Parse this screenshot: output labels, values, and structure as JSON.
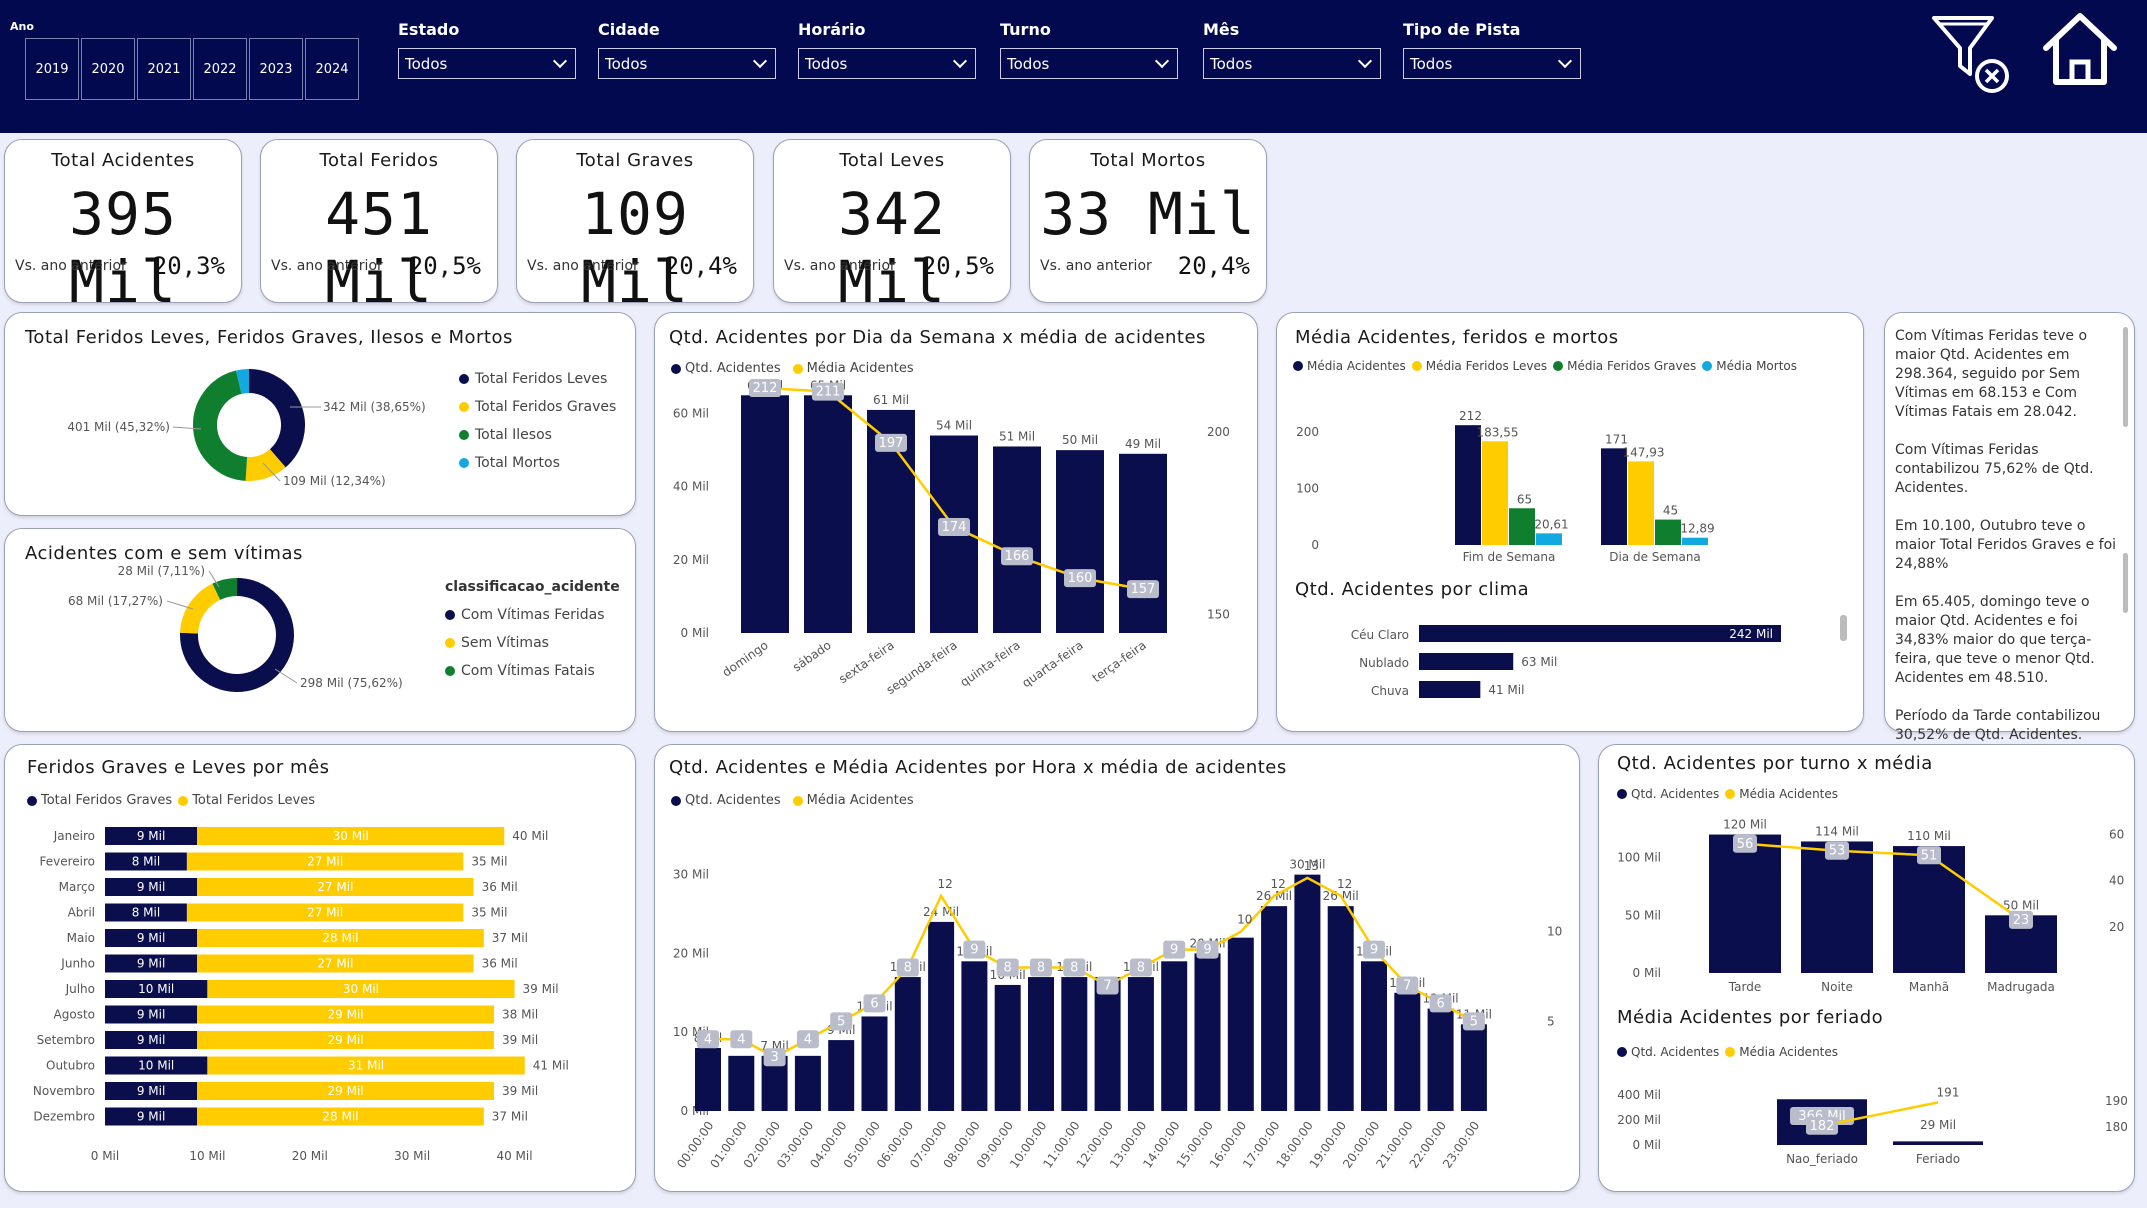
{
  "header": {
    "ano_label": "Ano",
    "years": [
      "2019",
      "2020",
      "2021",
      "2022",
      "2023",
      "2024"
    ],
    "filters": [
      {
        "label": "Estado",
        "value": "Todos"
      },
      {
        "label": "Cidade",
        "value": "Todos"
      },
      {
        "label": "Horário",
        "value": "Todos"
      },
      {
        "label": "Turno",
        "value": "Todos"
      },
      {
        "label": "Mês",
        "value": "Todos"
      },
      {
        "label": "Tipo de Pista",
        "value": "Todos"
      }
    ],
    "icons": [
      "clear-filter-icon",
      "home-icon"
    ]
  },
  "colors": {
    "navy": "#02094f",
    "dark_bar": "#0a0e4d",
    "yellow": "#ffcc00",
    "green": "#0f7f2f",
    "blue": "#11a9e0"
  },
  "kpis": [
    {
      "title": "Total Acidentes",
      "value": "395 Mil",
      "sub": "Vs. ano anterior",
      "pct": "20,3%"
    },
    {
      "title": "Total Feridos",
      "value": "451 Mil",
      "sub": "Vs. ano anterior",
      "pct": "20,5%"
    },
    {
      "title": "Total Graves",
      "value": "109 Mil",
      "sub": "Vs. ano anterior",
      "pct": "20,4%"
    },
    {
      "title": "Total Leves",
      "value": "342 Mil",
      "sub": "Vs. ano anterior",
      "pct": "20,5%"
    },
    {
      "title": "Total Mortos",
      "value": "33 Mil",
      "sub": "Vs. ano anterior",
      "pct": "20,4%"
    }
  ],
  "insights": [
    "Com Vítimas Feridas teve o maior Qtd. Acidentes em 298.364, seguido por Sem Vítimas em 68.153 e Com Vítimas Fatais em 28.042.",
    "Com Vítimas Feridas contabilizou 75,62% de Qtd. Acidentes.",
    "Em 10.100, Outubro teve o maior Total Feridos Graves e foi 24,88%",
    "Em 65.405, domingo teve o maior Qtd. Acidentes e foi 34,83% maior do que terça-feira, que teve o menor Qtd. Acidentes em 48.510.",
    "Período da Tarde contabilizou 30,52% de Qtd. Acidentes."
  ],
  "chart_data": [
    {
      "id": "feridos-donut",
      "type": "pie",
      "title": "Total Feridos Leves, Feridos Graves, Ilesos e Mortos",
      "legend": [
        "Total Feridos Leves",
        "Total Feridos Graves",
        "Total Ilesos",
        "Total Mortos"
      ],
      "values": [
        342,
        109,
        401,
        33
      ],
      "colors": [
        "#0a0e4d",
        "#ffcc00",
        "#0f7f2f",
        "#11a9e0"
      ],
      "labels": [
        "342 Mil (38,65%)",
        "109 Mil (12,34%)",
        "401 Mil (45,32%)",
        ""
      ]
    },
    {
      "id": "vitimas-donut",
      "type": "pie",
      "title": "Acidentes com e sem vítimas",
      "legend_title": "classificacao_acidente",
      "legend": [
        "Com Vítimas Feridas",
        "Sem Vítimas",
        "Com Vítimas Fatais"
      ],
      "values": [
        298,
        68,
        28
      ],
      "colors": [
        "#0a0e4d",
        "#ffcc00",
        "#0f7f2f"
      ],
      "labels": [
        "298 Mil (75,62%)",
        "68 Mil (17,27%)",
        "28 Mil (7,11%)"
      ]
    },
    {
      "id": "dia-semana",
      "type": "bar",
      "title": "Qtd. Acidentes por Dia da Semana x média de acidentes",
      "legend": [
        "Qtd. Acidentes",
        "Média Acidentes"
      ],
      "categories": [
        "domingo",
        "sábado",
        "sexta-feira",
        "segunda-feira",
        "quinta-feira",
        "quarta-feira",
        "terça-feira"
      ],
      "values": [
        65,
        65,
        61,
        54,
        51,
        50,
        49
      ],
      "value_labels": [
        "65 Mil",
        "65 Mil",
        "61 Mil",
        "54 Mil",
        "51 Mil",
        "50 Mil",
        "49 Mil"
      ],
      "line_values": [
        212,
        211,
        197,
        174,
        166,
        160,
        157
      ],
      "ylim": [
        0,
        70
      ],
      "y_ticks": [
        "0 Mil",
        "20 Mil",
        "40 Mil",
        "60 Mil"
      ],
      "y2lim": [
        145,
        215
      ],
      "y2_ticks": [
        "150",
        "200"
      ]
    },
    {
      "id": "media-afm",
      "type": "bar",
      "title": "Média Acidentes, feridos e mortos",
      "legend": [
        "Média Acidentes",
        "Média Feridos Leves",
        "Média Feridos Graves",
        "Média Mortos"
      ],
      "categories": [
        "Fim de Semana",
        "Dia de Semana"
      ],
      "series": [
        {
          "name": "Média Acidentes",
          "values": [
            212,
            171
          ]
        },
        {
          "name": "Média Feridos Leves",
          "values": [
            183.55,
            147.93
          ]
        },
        {
          "name": "Média Feridos Graves",
          "values": [
            65,
            45
          ]
        },
        {
          "name": "Média Mortos",
          "values": [
            20.61,
            12.89
          ]
        }
      ],
      "value_labels": [
        [
          "212",
          "183,55",
          "65",
          "20,61"
        ],
        [
          "171",
          "147,93",
          "45",
          "12,89"
        ]
      ],
      "ylim": [
        0,
        230
      ],
      "y_ticks": [
        "0",
        "100",
        "200"
      ]
    },
    {
      "id": "clima",
      "type": "bar",
      "title": "Qtd. Acidentes por clima",
      "categories": [
        "Céu Claro",
        "Nublado",
        "Chuva"
      ],
      "values": [
        242,
        63,
        41
      ],
      "value_labels": [
        "242 Mil",
        "63 Mil",
        "41 Mil"
      ]
    },
    {
      "id": "mes",
      "type": "bar",
      "title": "Feridos Graves e Leves por mês",
      "legend": [
        "Total Feridos Graves",
        "Total Feridos Leves"
      ],
      "categories": [
        "Janeiro",
        "Fevereiro",
        "Março",
        "Abril",
        "Maio",
        "Junho",
        "Julho",
        "Agosto",
        "Setembro",
        "Outubro",
        "Novembro",
        "Dezembro"
      ],
      "series": [
        {
          "name": "Total Feridos Graves",
          "values": [
            9,
            8,
            9,
            8,
            9,
            9,
            10,
            9,
            9,
            10,
            9,
            9
          ]
        },
        {
          "name": "Total Feridos Leves",
          "values": [
            30,
            27,
            27,
            27,
            28,
            27,
            30,
            29,
            29,
            31,
            29,
            28
          ]
        }
      ],
      "graves_labels": [
        "9 Mil",
        "8 Mil",
        "9 Mil",
        "8 Mil",
        "9 Mil",
        "9 Mil",
        "10 Mil",
        "9 Mil",
        "9 Mil",
        "10 Mil",
        "9 Mil",
        "9 Mil"
      ],
      "leves_labels": [
        "30 Mil",
        "27 Mil",
        "27 Mil",
        "27 Mil",
        "28 Mil",
        "27 Mil",
        "30 Mil",
        "29 Mil",
        "29 Mil",
        "31 Mil",
        "29 Mil",
        "28 Mil"
      ],
      "total_labels": [
        "40 Mil",
        "35 Mil",
        "36 Mil",
        "35 Mil",
        "37 Mil",
        "36 Mil",
        "39 Mil",
        "38 Mil",
        "39 Mil",
        "41 Mil",
        "39 Mil",
        "37 Mil"
      ],
      "xlim": [
        0,
        42
      ],
      "x_ticks": [
        "0 Mil",
        "10 Mil",
        "20 Mil",
        "30 Mil",
        "40 Mil"
      ]
    },
    {
      "id": "hora",
      "type": "bar",
      "title": "Qtd. Acidentes e Média Acidentes por Hora x média de acidentes",
      "legend": [
        "Qtd. Acidentes",
        "Média Acidentes"
      ],
      "categories": [
        "00:00:00",
        "01:00:00",
        "02:00:00",
        "03:00:00",
        "04:00:00",
        "05:00:00",
        "06:00:00",
        "07:00:00",
        "08:00:00",
        "09:00:00",
        "10:00:00",
        "11:00:00",
        "12:00:00",
        "13:00:00",
        "14:00:00",
        "15:00:00",
        "16:00:00",
        "17:00:00",
        "18:00:00",
        "19:00:00",
        "20:00:00",
        "21:00:00",
        "22:00:00",
        "23:00:00"
      ],
      "values": [
        8,
        7,
        7,
        7,
        9,
        12,
        17,
        24,
        19,
        16,
        17,
        17,
        17,
        17,
        19,
        20,
        22,
        26,
        30,
        26,
        19,
        15,
        13,
        11
      ],
      "value_labels": [
        "8 Mil",
        "",
        "7 Mil",
        "",
        "9 Mil",
        "12 Mil",
        "17 Mil",
        "24 Mil",
        "19 Mil",
        "16 Mil",
        "",
        "17 Mil",
        "",
        "17 Mil",
        "",
        "20 Mil",
        "",
        "26 Mil",
        "30 Mil",
        "26 Mil",
        "19 Mil",
        "15 Mil",
        "13 Mil",
        "11 Mil"
      ],
      "line_values": [
        4,
        4,
        3,
        4,
        5,
        6,
        8,
        12,
        9,
        8,
        8,
        8,
        7,
        8,
        9,
        9,
        10,
        12,
        13,
        12,
        9,
        7,
        6,
        5
      ],
      "line_labels": [
        "4",
        "4",
        "3",
        "4",
        "5",
        "6",
        "8",
        "12",
        "9",
        "8",
        "8",
        "8",
        "7",
        "8",
        "9",
        "9",
        "10",
        "12",
        "13",
        "12",
        "9",
        "7",
        "6",
        "5"
      ],
      "ylim": [
        0,
        33
      ],
      "y_ticks": [
        "0 Mil",
        "10 Mil",
        "20 Mil",
        "30 Mil"
      ],
      "y2_ticks": [
        "5",
        "10"
      ]
    },
    {
      "id": "turno",
      "type": "bar",
      "title": "Qtd. Acidentes por turno x média",
      "legend": [
        "Qtd. Acidentes",
        "Média Acidentes"
      ],
      "categories": [
        "Tarde",
        "Noite",
        "Manhã",
        "Madrugada"
      ],
      "values": [
        120,
        114,
        110,
        50
      ],
      "value_labels": [
        "120 Mil",
        "114 Mil",
        "110 Mil",
        "50 Mil"
      ],
      "line_values": [
        56,
        53,
        51,
        23
      ],
      "ylim": [
        0,
        130
      ],
      "y_ticks": [
        "0 Mil",
        "50 Mil",
        "100 Mil"
      ],
      "y2_ticks": [
        "20",
        "40",
        "60"
      ]
    },
    {
      "id": "feriado",
      "type": "bar",
      "title": "Média Acidentes por feriado",
      "legend": [
        "Qtd. Acidentes",
        "Média Acidentes"
      ],
      "categories": [
        "Nao_feriado",
        "Feriado"
      ],
      "values": [
        366,
        29
      ],
      "value_labels": [
        "366 Mil",
        "29 Mil"
      ],
      "line_values": [
        182,
        191
      ],
      "y_ticks": [
        "0 Mil",
        "200 Mil",
        "400 Mil"
      ],
      "y2_ticks": [
        "180",
        "190"
      ]
    }
  ]
}
